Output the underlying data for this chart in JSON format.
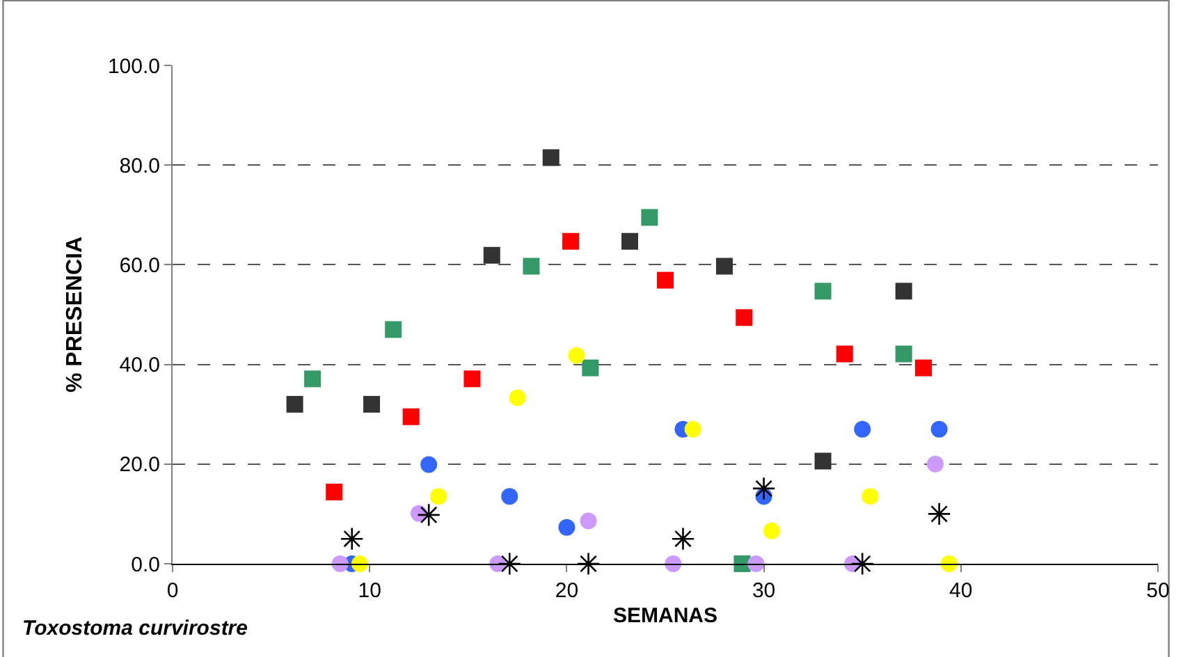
{
  "chart_data": {
    "type": "scatter",
    "xlabel": "SEMANAS",
    "ylabel": "% PRESENCIA",
    "annotations": [
      "Toxostoma curvirostre"
    ],
    "xlim": [
      0,
      50
    ],
    "xticks": [
      0,
      10,
      20,
      30,
      40,
      50
    ],
    "ylim": [
      0,
      100
    ],
    "yticks": [
      {
        "value": 0,
        "label": "0.0"
      },
      {
        "value": 20,
        "label": "20.0"
      },
      {
        "value": 40,
        "label": "40.0"
      },
      {
        "value": 60,
        "label": "60.0"
      },
      {
        "value": 80,
        "label": "80.0"
      },
      {
        "value": 100,
        "label": "100.0"
      }
    ],
    "grid": "y",
    "series": [
      {
        "color": "#333333",
        "marker": "square",
        "x": [
          6.2,
          10.1,
          16.2,
          19.2,
          23.2,
          28.0,
          33.0,
          37.1
        ],
        "values": [
          32.0,
          32.0,
          61.9,
          81.5,
          64.7,
          59.7,
          20.6,
          54.7
        ]
      },
      {
        "color": "#339966",
        "marker": "square",
        "x": [
          7.1,
          11.2,
          18.2,
          21.2,
          24.2,
          28.9,
          33.0,
          37.1
        ],
        "values": [
          37.1,
          47.0,
          59.7,
          39.3,
          69.5,
          0.0,
          54.7,
          42.1
        ]
      },
      {
        "color": "#ff0000",
        "marker": "square",
        "x": [
          8.2,
          12.1,
          15.2,
          20.2,
          25.0,
          29.0,
          34.1,
          38.1
        ],
        "values": [
          14.4,
          29.5,
          37.1,
          64.7,
          56.9,
          49.4,
          42.1,
          39.3
        ]
      },
      {
        "color": "#3366ff",
        "marker": "circle",
        "x": [
          9.1,
          13.0,
          17.1,
          20.0,
          25.9,
          30.0,
          35.0,
          38.9
        ],
        "values": [
          0.0,
          19.9,
          13.5,
          7.3,
          27.0,
          13.5,
          27.0,
          27.0
        ]
      },
      {
        "color": "#cc99ff",
        "marker": "circle",
        "x": [
          8.5,
          12.5,
          16.5,
          21.1,
          25.4,
          29.6,
          34.5,
          38.7
        ],
        "values": [
          0.0,
          10.1,
          0.0,
          8.6,
          0.0,
          0.0,
          0.0,
          20.0
        ]
      },
      {
        "color": "#ffff00",
        "marker": "circle",
        "x": [
          9.5,
          13.5,
          17.5,
          20.5,
          26.4,
          30.4,
          35.4,
          39.4
        ],
        "values": [
          0.0,
          13.5,
          33.3,
          41.8,
          27.0,
          6.6,
          13.5,
          0.0
        ]
      },
      {
        "color": "#000000",
        "marker": "cross",
        "x": [
          9.1,
          13.0,
          17.1,
          21.1,
          25.9,
          30.0,
          35.0,
          38.9
        ],
        "values": [
          5.0,
          9.8,
          0.0,
          0.0,
          5.0,
          15.1,
          0.0,
          10.0
        ]
      }
    ]
  }
}
